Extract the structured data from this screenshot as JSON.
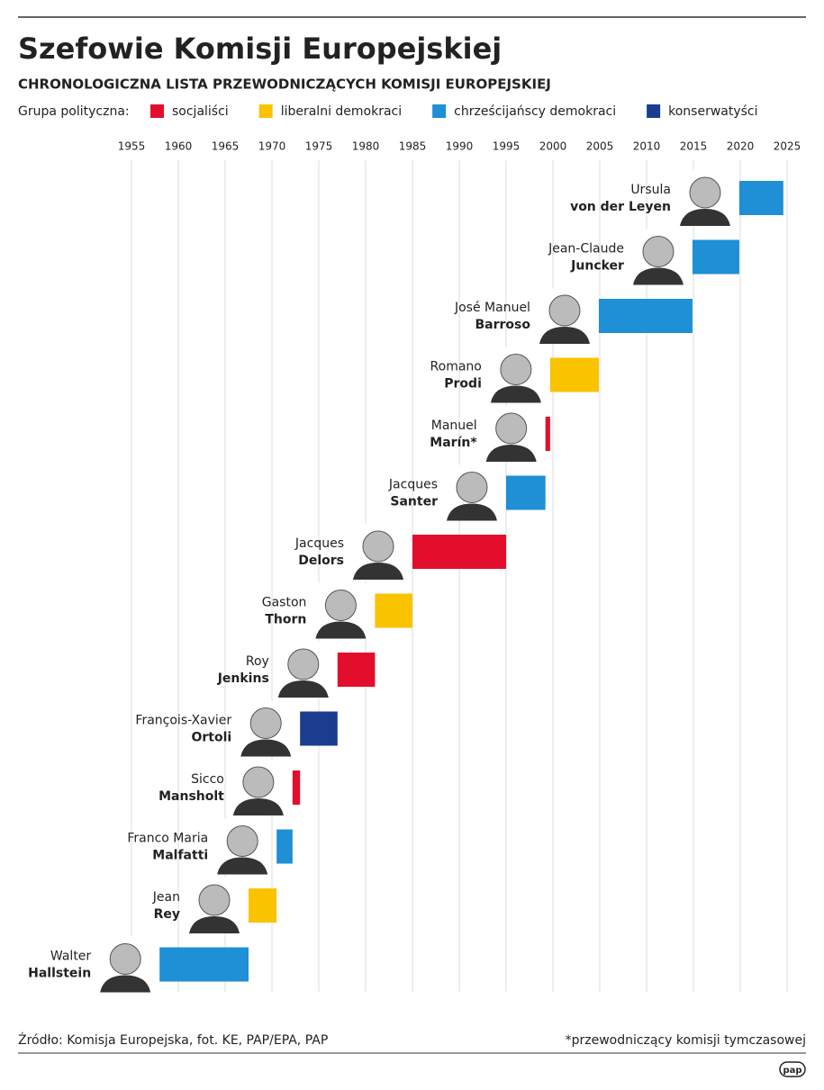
{
  "chart_data": {
    "type": "timeline",
    "title": "Szefowie Komisji Europejskiej",
    "subtitle": "CHRONOLOGICZNA LISTA PRZEWODNICZĄCYCH KOMISJI EUROPEJSKIEJ",
    "legend_title": "Grupa polityczna:",
    "series": [
      {
        "name": "socjaliści",
        "color": "#e30e2c"
      },
      {
        "name": "liberalni demokraci",
        "color": "#f9c300"
      },
      {
        "name": "chrześcijańscy demokraci",
        "color": "#1f8fd6"
      },
      {
        "name": "konserwatyści",
        "color": "#1a3d8f"
      }
    ],
    "xlim": [
      1955,
      2025
    ],
    "xticks": [
      1955,
      1960,
      1965,
      1970,
      1975,
      1980,
      1985,
      1990,
      1995,
      2000,
      2005,
      2010,
      2015,
      2020,
      2025
    ],
    "grid": true,
    "presidents": [
      {
        "first_name": "Ursula",
        "last_name": "von der Leyen",
        "series": 2,
        "start": 2019.9,
        "end": 2024.6
      },
      {
        "first_name": "Jean-Claude",
        "last_name": "Juncker",
        "series": 2,
        "start": 2014.9,
        "end": 2019.9
      },
      {
        "first_name": "José Manuel",
        "last_name": "Barroso",
        "series": 2,
        "start": 2004.9,
        "end": 2014.9
      },
      {
        "first_name": "Romano",
        "last_name": "Prodi",
        "series": 1,
        "start": 1999.7,
        "end": 2004.9
      },
      {
        "first_name": "Manuel",
        "last_name": "Marín*",
        "series": 0,
        "start": 1999.2,
        "end": 1999.7
      },
      {
        "first_name": "Jacques",
        "last_name": "Santer",
        "series": 2,
        "start": 1995,
        "end": 1999.2
      },
      {
        "first_name": "Jacques",
        "last_name": "Delors",
        "series": 0,
        "start": 1985,
        "end": 1995
      },
      {
        "first_name": "Gaston",
        "last_name": "Thorn",
        "series": 1,
        "start": 1981,
        "end": 1985
      },
      {
        "first_name": "Roy",
        "last_name": "Jenkins",
        "series": 0,
        "start": 1977,
        "end": 1981
      },
      {
        "first_name": "François-Xavier",
        "last_name": "Ortoli",
        "series": 3,
        "start": 1973,
        "end": 1977
      },
      {
        "first_name": "Sicco",
        "last_name": "Mansholt",
        "series": 0,
        "start": 1972.2,
        "end": 1973
      },
      {
        "first_name": "Franco Maria",
        "last_name": "Malfatti",
        "series": 2,
        "start": 1970.5,
        "end": 1972.2
      },
      {
        "first_name": "Jean",
        "last_name": "Rey",
        "series": 1,
        "start": 1967.5,
        "end": 1970.5
      },
      {
        "first_name": "Walter",
        "last_name": "Hallstein",
        "series": 2,
        "start": 1958,
        "end": 1967.5
      }
    ],
    "source": "Źródło: Komisja Europejska, fot. KE, PAP/EPA, PAP",
    "footnote": "*przewodniczący komisji tymczasowej",
    "logo": "pap"
  }
}
